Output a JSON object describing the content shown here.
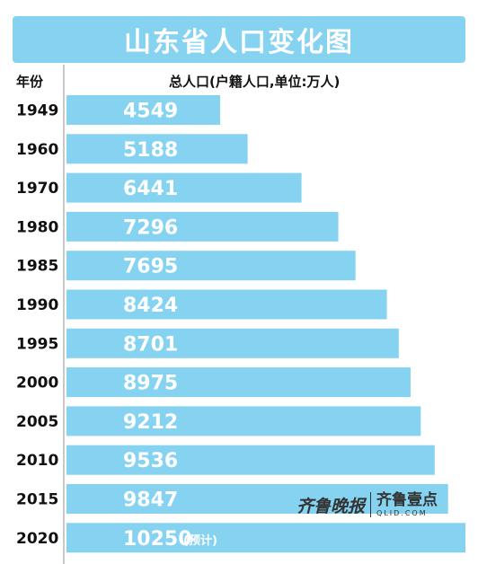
{
  "title": "山东省人口变化图",
  "header": {
    "year_label": "年份",
    "unit_label": "总人口(户籍人口,单位:万人)"
  },
  "chart_data": {
    "type": "bar",
    "orientation": "horizontal",
    "title": "山东省人口变化图",
    "xlabel": "总人口(户籍人口,单位:万人)",
    "ylabel": "年份",
    "categories": [
      "1949",
      "1960",
      "1970",
      "1980",
      "1985",
      "1990",
      "1995",
      "2000",
      "2005",
      "2010",
      "2015",
      "2020"
    ],
    "values": [
      4549,
      5188,
      6441,
      7296,
      7695,
      8424,
      8701,
      8975,
      9212,
      9536,
      9847,
      10250
    ],
    "value_labels": [
      "4549",
      "5188",
      "6441",
      "7296",
      "7695",
      "8424",
      "8701",
      "8975",
      "9212",
      "9536",
      "9847",
      "10250"
    ],
    "annotations": [
      {
        "category": "2020",
        "text": "(预计)"
      }
    ],
    "bar_color": "#86d3f1"
  },
  "watermark": {
    "brand": "齐鲁晚报",
    "app": "齐鲁壹点",
    "domain": "QLID.COM"
  }
}
